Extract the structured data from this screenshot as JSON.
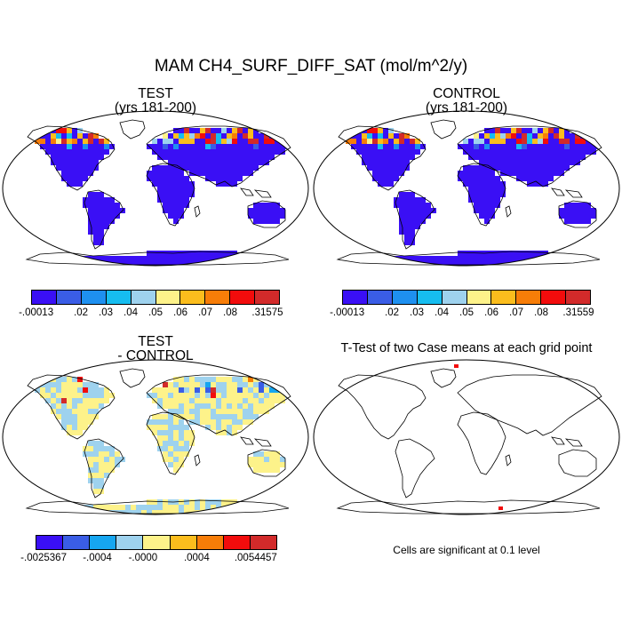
{
  "title": "MAM CH4_SURF_DIFF_SAT (mol/m^2/y)",
  "panels": {
    "test": {
      "title": "TEST",
      "subtitle": "(yrs 181-200)"
    },
    "control": {
      "title": "CONTROL",
      "subtitle": "(yrs 181-200)"
    },
    "diff": {
      "title": "TEST",
      "subtitle": "- CONTROL"
    },
    "ttest": {
      "title": "T-Test of two Case means at each grid point",
      "note": "Cells are significant at 0.1 level"
    }
  },
  "colorbars": {
    "test": {
      "colors": [
        "#3a0ff5",
        "#3a5de6",
        "#1e90f0",
        "#16bdf0",
        "#9ed2ee",
        "#fdf28a",
        "#fbbd1d",
        "#f77d08",
        "#f20c0c",
        "#d22a2a"
      ],
      "labels": [
        "-.00013",
        ".02",
        ".03",
        ".04",
        ".05",
        ".06",
        ".07",
        ".08",
        ".31575"
      ]
    },
    "control": {
      "colors": [
        "#3a0ff5",
        "#3a5de6",
        "#1e90f0",
        "#16bdf0",
        "#9ed2ee",
        "#fdf28a",
        "#fbbd1d",
        "#f77d08",
        "#f20c0c",
        "#d22a2a"
      ],
      "labels": [
        "-.00013",
        ".02",
        ".03",
        ".04",
        ".05",
        ".06",
        ".07",
        ".08",
        ".31559"
      ]
    },
    "diff": {
      "colors": [
        "#3a0ff5",
        "#3a5de6",
        "#16a6f0",
        "#9ed2ee",
        "#fdf28a",
        "#fbbd1d",
        "#f77d08",
        "#f20c0c",
        "#d22a2a"
      ],
      "labels": [
        "-.0025367",
        "-.0004",
        "-.0000",
        ".0004",
        ".0054457"
      ]
    }
  },
  "colors": {
    "land_base": "#3a0ff5",
    "diff_base": "#fdf28a",
    "diff_alt": "#9ed2ee"
  }
}
